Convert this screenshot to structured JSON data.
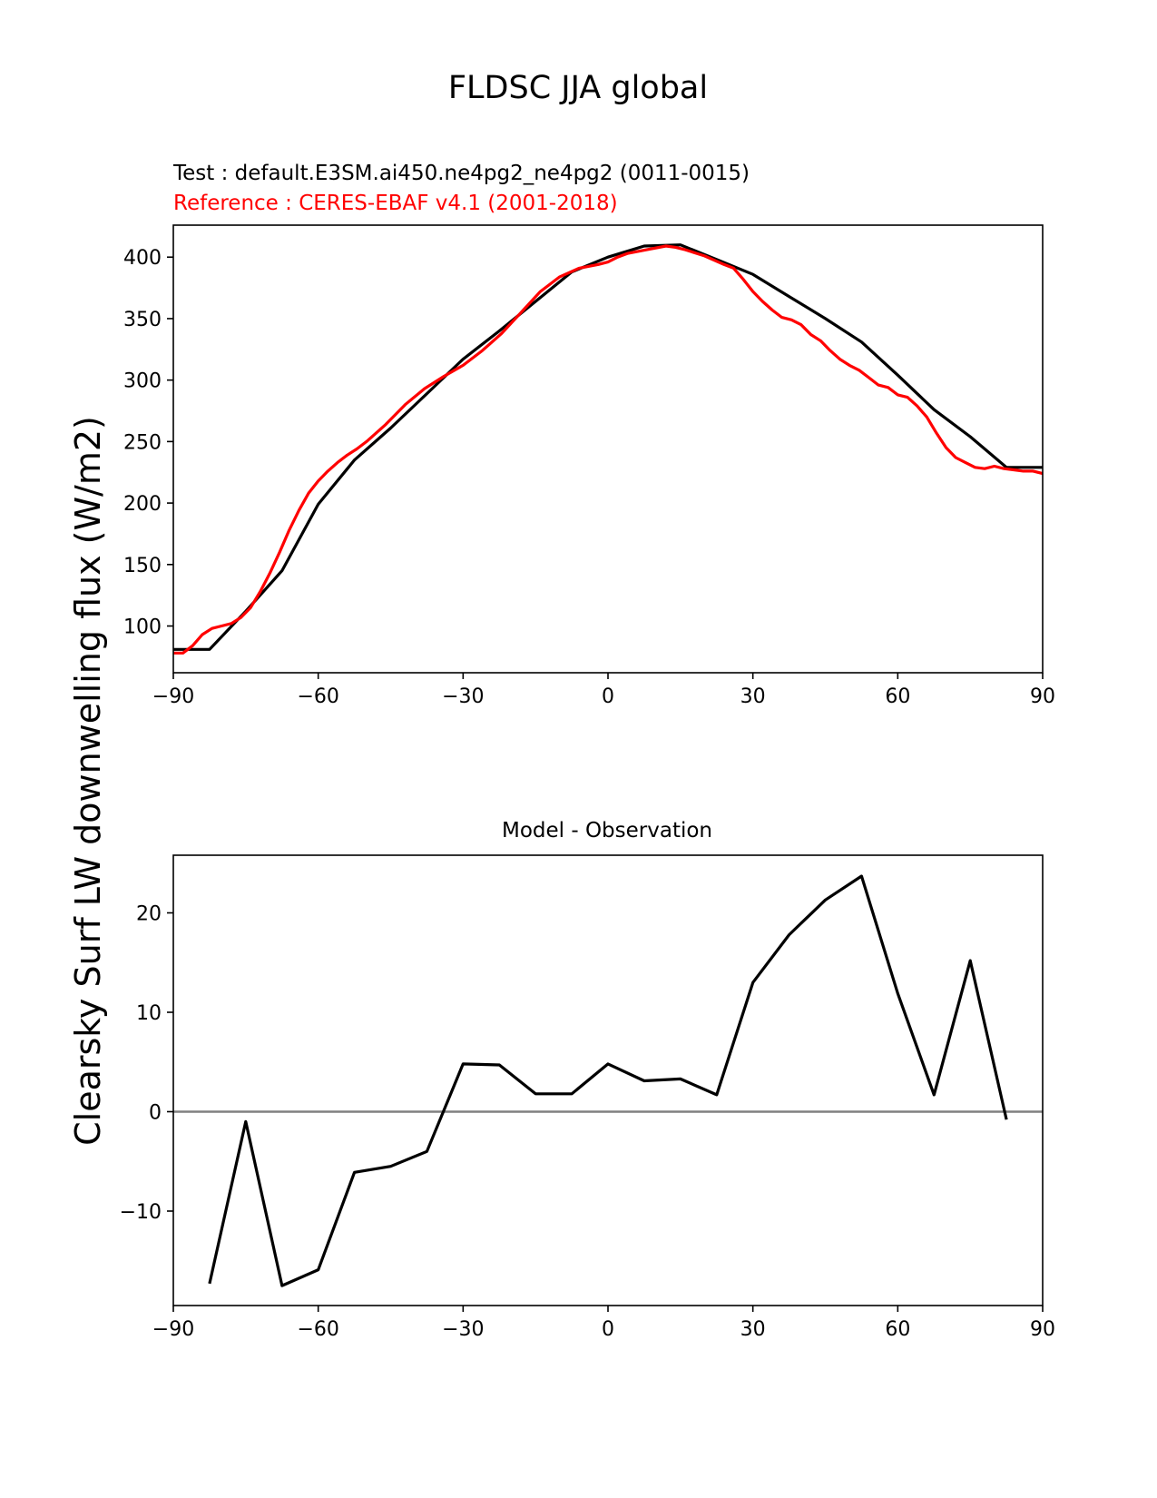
{
  "figure": {
    "title": "FLDSC JJA global",
    "ylabel": "Clearsky Surf LW downwelling flux (W/m2)"
  },
  "chart_data": [
    {
      "type": "line",
      "test_label": "Test : default.E3SM.ai450.ne4pg2_ne4pg2 (0011-0015)",
      "reference_label": "Reference : CERES-EBAF v4.1 (2001-2018)",
      "xlim": [
        -90,
        90
      ],
      "ylim": [
        62,
        426
      ],
      "xticks": [
        -90,
        -60,
        -30,
        0,
        30,
        60,
        90
      ],
      "xtick_labels": [
        "−90",
        "−60",
        "−30",
        "0",
        "30",
        "60",
        "90"
      ],
      "yticks": [
        100,
        150,
        200,
        250,
        300,
        350,
        400
      ],
      "ytick_labels": [
        "100",
        "150",
        "200",
        "250",
        "300",
        "350",
        "400"
      ],
      "series": [
        {
          "color": "#000000",
          "x": [
            -90,
            -82.5,
            -75,
            -67.5,
            -60,
            -52.5,
            -45,
            -37.5,
            -30,
            -22.5,
            -15,
            -7.5,
            0,
            7.5,
            15,
            22.5,
            30,
            37.5,
            45,
            52.5,
            60,
            67.5,
            75,
            82.5,
            90
          ],
          "y": [
            81,
            81,
            112,
            145,
            199,
            235,
            261,
            289,
            317,
            340,
            364,
            388,
            400,
            409,
            410,
            398,
            386,
            368,
            350,
            331,
            304,
            276,
            254,
            229,
            229
          ]
        },
        {
          "color": "#ff0000",
          "x": [
            -90,
            -88,
            -86,
            -84,
            -82,
            -80,
            -78,
            -76,
            -74,
            -72,
            -70,
            -68,
            -66,
            -64,
            -62,
            -60,
            -58,
            -56,
            -54,
            -52,
            -50,
            -46,
            -42,
            -38,
            -34,
            -30,
            -26,
            -22,
            -18,
            -14,
            -10,
            -6,
            -2,
            0,
            2,
            4,
            8,
            12,
            14,
            16,
            20,
            24,
            26,
            28,
            30,
            32,
            34,
            36,
            38,
            40,
            42,
            44,
            46,
            48,
            50,
            52,
            54,
            56,
            58,
            60,
            62,
            64,
            66,
            68,
            70,
            72,
            74,
            76,
            78,
            80,
            82,
            84,
            86,
            88,
            90
          ],
          "y": [
            78,
            78,
            84,
            93,
            98,
            100,
            102,
            107,
            115,
            128,
            143,
            160,
            178,
            194,
            208,
            218,
            226,
            233,
            239,
            244,
            250,
            264,
            280,
            293,
            303,
            312,
            324,
            338,
            355,
            372,
            384,
            391,
            394,
            396,
            400,
            403,
            406,
            409,
            408,
            406,
            401,
            394,
            391,
            382,
            372,
            364,
            357,
            351,
            349,
            345,
            337,
            332,
            324,
            317,
            312,
            308,
            302,
            296,
            294,
            288,
            286,
            279,
            270,
            257,
            245,
            237,
            233,
            229,
            228,
            230,
            228,
            227,
            226,
            226,
            224
          ]
        }
      ]
    },
    {
      "type": "line",
      "title": "Model - Observation",
      "xlim": [
        -90,
        90
      ],
      "ylim": [
        -19.5,
        25.8
      ],
      "xticks": [
        -90,
        -60,
        -30,
        0,
        30,
        60,
        90
      ],
      "xtick_labels": [
        "−90",
        "−60",
        "−30",
        "0",
        "30",
        "60",
        "90"
      ],
      "yticks": [
        -10,
        0,
        10,
        20
      ],
      "ytick_labels": [
        "−10",
        "0",
        "10",
        "20"
      ],
      "zero_line_color": "#808080",
      "series": [
        {
          "color": "#000000",
          "x": [
            -82.5,
            -75,
            -67.5,
            -60,
            -52.5,
            -45,
            -37.5,
            -30,
            -22.5,
            -15,
            -7.5,
            0,
            7.5,
            15,
            22.5,
            30,
            37.5,
            45,
            52.5,
            60,
            67.5,
            75,
            82.5
          ],
          "y": [
            -17.3,
            -1.0,
            -17.5,
            -15.9,
            -6.1,
            -5.5,
            -4.0,
            4.8,
            4.7,
            1.8,
            1.8,
            4.8,
            3.1,
            3.3,
            1.7,
            13.0,
            17.8,
            21.3,
            23.7,
            11.9,
            1.7,
            15.2,
            -0.8
          ]
        }
      ]
    }
  ]
}
